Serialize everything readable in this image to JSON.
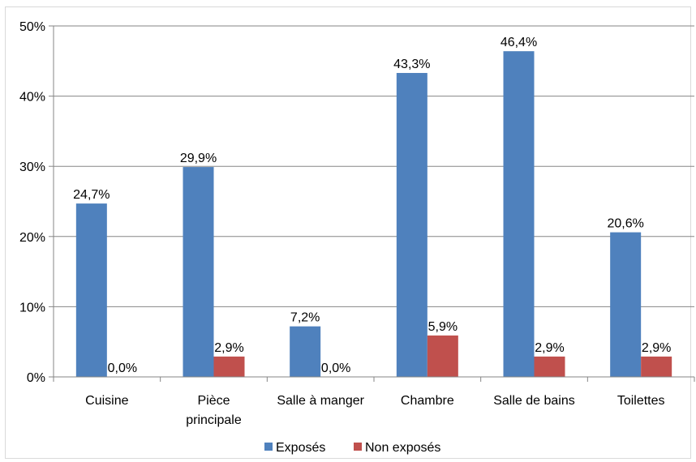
{
  "chart_data": {
    "type": "bar",
    "categories": [
      [
        "Cuisine"
      ],
      [
        "Pièce",
        "principale"
      ],
      [
        "Salle à manger"
      ],
      [
        "Chambre"
      ],
      [
        "Salle de bains"
      ],
      [
        "Toilettes"
      ]
    ],
    "series": [
      {
        "name": "Exposés",
        "color": "#4f81bd",
        "values": [
          24.7,
          29.9,
          7.2,
          43.3,
          46.4,
          20.6
        ],
        "labels": [
          "24,7%",
          "29,9%",
          "7,2%",
          "43,3%",
          "46,4%",
          "20,6%"
        ]
      },
      {
        "name": "Non exposés",
        "color": "#c0504d",
        "values": [
          0.0,
          2.9,
          0.0,
          5.9,
          2.9,
          2.9
        ],
        "labels": [
          "0,0%",
          "2,9%",
          "0,0%",
          "5,9%",
          "2,9%",
          "2,9%"
        ]
      }
    ],
    "yticks": [
      0,
      10,
      20,
      30,
      40,
      50
    ],
    "ytick_labels": [
      "0%",
      "10%",
      "20%",
      "30%",
      "40%",
      "50%"
    ],
    "ylim": [
      0,
      50
    ],
    "grid": true,
    "legend_position": "bottom"
  }
}
